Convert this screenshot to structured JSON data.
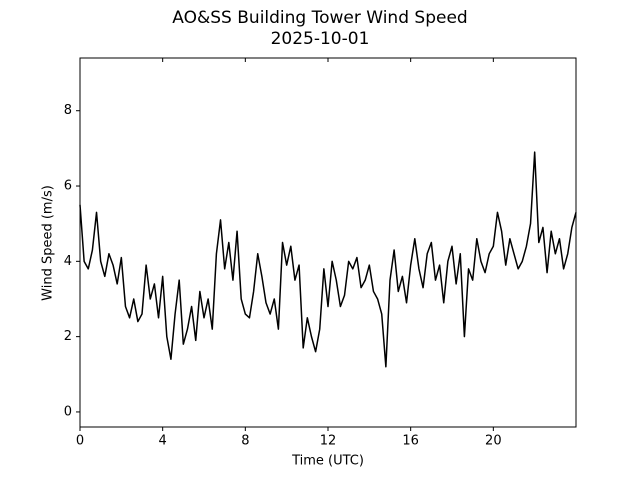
{
  "chart_data": {
    "type": "line",
    "title": "AO&SS Building Tower Wind Speed",
    "subtitle": "2025-10-01",
    "x_label": "Time (UTC)",
    "y_label": "Wind Speed (m/s)",
    "color": "#000000",
    "x": [
      0,
      0.2,
      0.4,
      0.6,
      0.8,
      1,
      1.2,
      1.4,
      1.6,
      1.8,
      2,
      2.2,
      2.4,
      2.6,
      2.8,
      3,
      3.2,
      3.4,
      3.6,
      3.8,
      4,
      4.2,
      4.4,
      4.6,
      4.8,
      5,
      5.2,
      5.4,
      5.6,
      5.8,
      6,
      6.2,
      6.4,
      6.6,
      6.8,
      7,
      7.2,
      7.4,
      7.6,
      7.8,
      8,
      8.2,
      8.4,
      8.6,
      8.8,
      9,
      9.2,
      9.4,
      9.6,
      9.8,
      10,
      10.2,
      10.4,
      10.6,
      10.8,
      11,
      11.2,
      11.4,
      11.6,
      11.8,
      12,
      12.2,
      12.4,
      12.6,
      12.8,
      13,
      13.2,
      13.4,
      13.6,
      13.8,
      14,
      14.2,
      14.4,
      14.6,
      14.8,
      15,
      15.2,
      15.4,
      15.6,
      15.8,
      16,
      16.2,
      16.4,
      16.6,
      16.8,
      17,
      17.2,
      17.4,
      17.6,
      17.8,
      18,
      18.2,
      18.4,
      18.6,
      18.8,
      19,
      19.2,
      19.4,
      19.6,
      19.8,
      20,
      20.2,
      20.4,
      20.6,
      20.8,
      21,
      21.2,
      21.4,
      21.6,
      21.8,
      22,
      22.2,
      22.4,
      22.6,
      22.8,
      23,
      23.2,
      23.4,
      23.6,
      23.8,
      24
    ],
    "values": [
      5.5,
      4.0,
      3.8,
      4.3,
      5.3,
      4.0,
      3.6,
      4.2,
      3.9,
      3.4,
      4.1,
      2.8,
      2.5,
      3.0,
      2.4,
      2.6,
      3.9,
      3.0,
      3.4,
      2.5,
      3.6,
      2.0,
      1.4,
      2.6,
      3.5,
      1.8,
      2.2,
      2.8,
      1.9,
      3.2,
      2.5,
      3.0,
      2.2,
      4.2,
      5.1,
      3.8,
      4.5,
      3.5,
      4.8,
      3.0,
      2.6,
      2.5,
      3.2,
      4.2,
      3.6,
      2.9,
      2.6,
      3.0,
      2.2,
      4.5,
      3.9,
      4.4,
      3.5,
      3.9,
      1.7,
      2.5,
      2.0,
      1.6,
      2.2,
      3.8,
      2.8,
      4.0,
      3.5,
      2.8,
      3.1,
      4.0,
      3.8,
      4.1,
      3.3,
      3.5,
      3.9,
      3.2,
      3.0,
      2.6,
      1.2,
      3.5,
      4.3,
      3.2,
      3.6,
      2.9,
      3.9,
      4.6,
      3.8,
      3.3,
      4.2,
      4.5,
      3.5,
      3.9,
      2.9,
      4.0,
      4.4,
      3.4,
      4.2,
      2.0,
      3.8,
      3.5,
      4.6,
      4.0,
      3.7,
      4.2,
      4.4,
      5.3,
      4.8,
      3.9,
      4.6,
      4.2,
      3.8,
      4.0,
      4.4,
      5.0,
      6.9,
      4.5,
      4.9,
      3.7,
      4.8,
      4.2,
      4.6,
      3.8,
      4.2,
      4.9,
      5.3
    ],
    "xlim": [
      0,
      24
    ],
    "ylim": [
      -0.4,
      9.4
    ],
    "xticks": [
      0,
      4,
      8,
      12,
      16,
      20
    ],
    "yticks": [
      0,
      2,
      4,
      6,
      8
    ],
    "grid": false
  }
}
